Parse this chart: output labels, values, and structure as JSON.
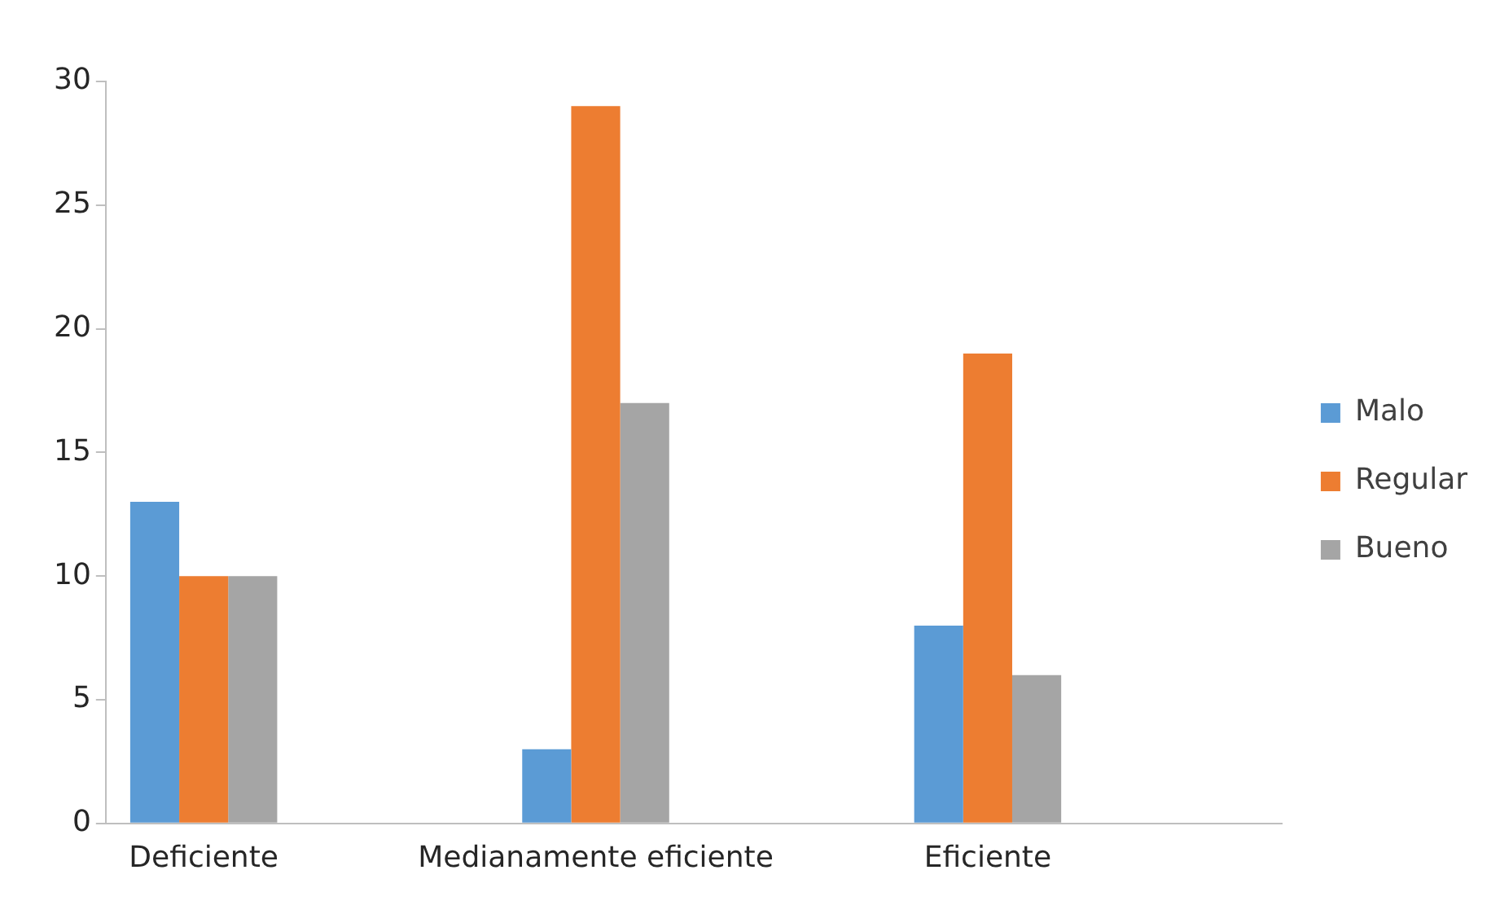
{
  "chart_data": {
    "type": "bar",
    "categories": [
      "Deficiente",
      null,
      "Medianamente eficiente",
      null,
      "Eficiente",
      null
    ],
    "series": [
      {
        "name": "Malo",
        "color": "#5b9bd5",
        "values": [
          13,
          0,
          3,
          0,
          8,
          0
        ]
      },
      {
        "name": "Regular",
        "color": "#ed7d31",
        "values": [
          10,
          0,
          29,
          0,
          19,
          0
        ]
      },
      {
        "name": "Bueno",
        "color": "#a5a5a5",
        "values": [
          10,
          0,
          17,
          0,
          6,
          0
        ]
      }
    ],
    "ylim": [
      0,
      30
    ],
    "yticks": [
      0,
      5,
      10,
      15,
      20,
      25,
      30
    ],
    "grid": false,
    "legend": "right"
  }
}
